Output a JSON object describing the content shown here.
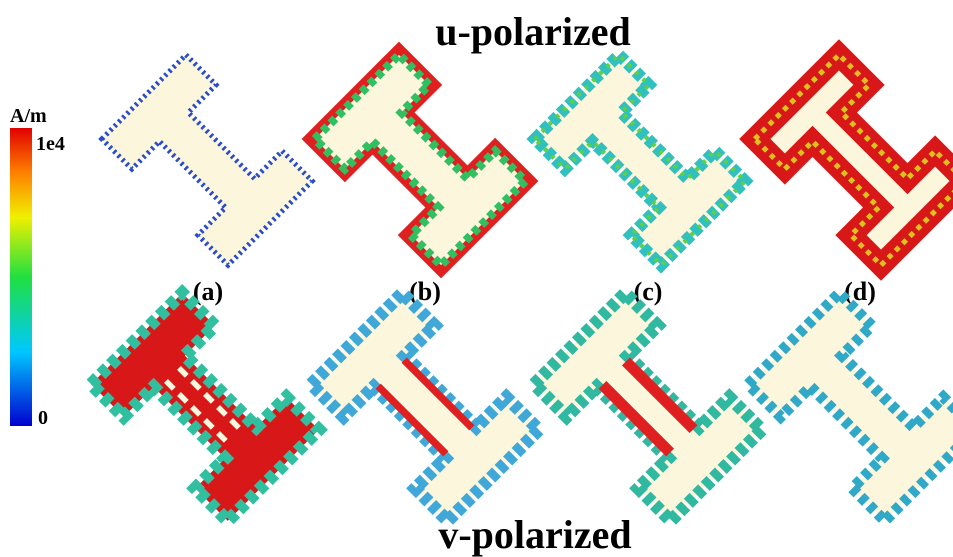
{
  "header": {
    "title": "u-polarized"
  },
  "footer": {
    "title": "v-polarized"
  },
  "colorbar": {
    "unit": "A/m",
    "max_label": "1e4",
    "min_label": "0"
  },
  "panels": [
    {
      "label": "(a)"
    },
    {
      "label": "(b)"
    },
    {
      "label": "(c)"
    },
    {
      "label": "(d)"
    }
  ]
}
